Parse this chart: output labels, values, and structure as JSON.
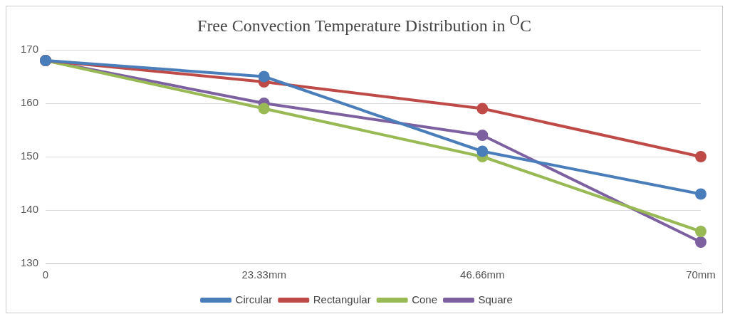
{
  "chart_data": {
    "type": "line",
    "title": "Free Convection Temperature Distribution in $^{O}$C",
    "categories": [
      "0",
      "23.33mm",
      "46.66mm",
      "70mm"
    ],
    "series": [
      {
        "name": "Circular",
        "color": "#4a7ebb",
        "values": [
          168,
          165,
          151,
          143
        ]
      },
      {
        "name": "Rectangular",
        "color": "#be4b48",
        "values": [
          168,
          164,
          159,
          150
        ]
      },
      {
        "name": "Cone",
        "color": "#98b954",
        "values": [
          168,
          159,
          150,
          136
        ]
      },
      {
        "name": "Square",
        "color": "#7d60a0",
        "values": [
          168,
          160,
          154,
          134
        ]
      }
    ],
    "ylim": [
      130,
      170
    ],
    "yticks": [
      130,
      140,
      150,
      160,
      170
    ],
    "grid": "y",
    "legend": "bottom",
    "marker": "circle",
    "line_style": "solid"
  }
}
